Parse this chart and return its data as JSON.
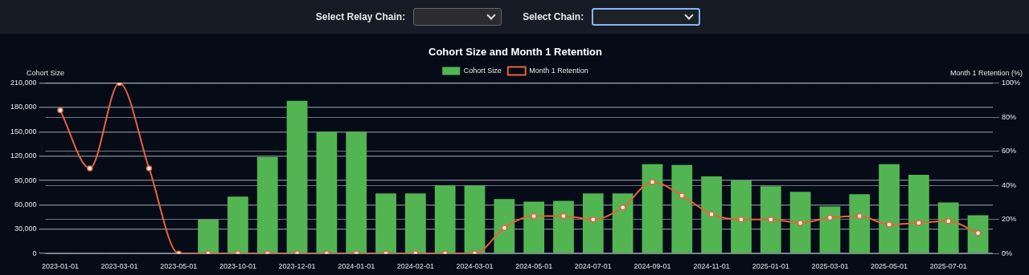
{
  "chart_data": {
    "type": "bar",
    "title": "Cohort Size and Month 1 Retention",
    "xlabel": null,
    "ylabel": "Cohort Size",
    "y2label": "Month 1 Retention (%)",
    "annotations": [
      "Select Relay Chain:",
      "Select Chain:"
    ],
    "categories": [
      "2023-01-01",
      null,
      "2023-03-01",
      null,
      "2023-05-01",
      null,
      "2023-10-01",
      null,
      "2023-12-01",
      null,
      "2024-01-01",
      null,
      "2024-02-01",
      null,
      "2024-03-01",
      null,
      "2024-05-01",
      null,
      "2024-07-01",
      null,
      "2024-09-01",
      null,
      "2024-11-01",
      null,
      "2025-01-01",
      null,
      "2025-03-01",
      null,
      "2025-05-01",
      null,
      "2025-07-01",
      null
    ],
    "series": [
      {
        "name": "Cohort Size",
        "color": "#52b552",
        "values": [
          null,
          null,
          null,
          null,
          null,
          42000,
          70000,
          119000,
          188000,
          150000,
          150000,
          74000,
          74000,
          84000,
          84000,
          67000,
          64000,
          65000,
          74000,
          74000,
          110000,
          109000,
          95000,
          90000,
          83000,
          76000,
          58000,
          73000,
          110000,
          97000,
          63000,
          47000
        ]
      },
      {
        "name": "Month 1 Retention",
        "type": "line",
        "axis": "y2",
        "color": "#e8623a",
        "marker": "circle",
        "values": [
          84,
          50,
          100,
          50,
          0,
          0,
          0,
          0,
          0,
          0,
          0,
          0,
          0,
          0,
          0,
          15,
          22,
          22,
          20,
          27,
          42,
          34,
          23,
          20,
          20,
          18,
          21,
          22,
          17,
          18,
          19,
          12
        ]
      }
    ],
    "ylim": [
      0,
      210000
    ],
    "yticks": [
      0,
      {
        "value": 30000,
        "label": "30,000"
      },
      {
        "value": 60000,
        "label": "60,000"
      },
      {
        "value": 90000,
        "label": "90,000"
      },
      {
        "value": 120000,
        "label": "120,000"
      },
      {
        "value": 150000,
        "label": "150,000"
      },
      {
        "value": 180000,
        "label": "180,000"
      },
      {
        "value": 210000,
        "label": "210,000"
      }
    ],
    "y2lim": [
      0,
      100
    ],
    "y2ticks": [
      {
        "value": 0,
        "label": "0%"
      },
      {
        "value": 20,
        "label": "20%"
      },
      {
        "value": 40,
        "label": "40%"
      },
      {
        "value": 60,
        "label": "60%"
      },
      {
        "value": 80,
        "label": "80%"
      },
      {
        "value": 100,
        "label": "100%"
      }
    ],
    "grid": true,
    "legend": "top"
  }
}
